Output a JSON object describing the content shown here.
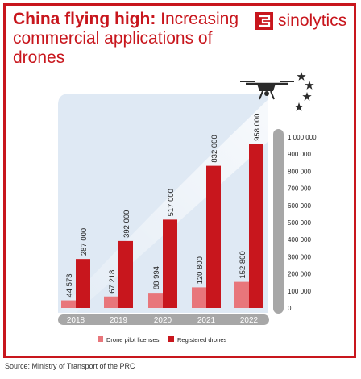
{
  "header": {
    "title_bold": "China flying high:",
    "title_rest": " Increasing commercial applications of drones",
    "brand": "sinolytics"
  },
  "source": "Source: Ministry of Transport of the PRC",
  "colors": {
    "accent": "#c8161d",
    "licenses": "#e8767b",
    "registered": "#c8161d",
    "axis_bar": "#a7a7a7",
    "background_panel": "#dfe9f4"
  },
  "icons": [
    "sinolytics-logo-icon",
    "drone-icon",
    "star-icon"
  ],
  "chart_data": {
    "type": "bar",
    "categories": [
      "2018",
      "2019",
      "2020",
      "2021",
      "2022"
    ],
    "series": [
      {
        "name": "Drone pilot licenses",
        "values": [
          44573,
          67218,
          88994,
          120800,
          152800
        ],
        "labels": [
          "44 573",
          "67 218",
          "88 994",
          "120 800",
          "152 800"
        ]
      },
      {
        "name": "Registered drones",
        "values": [
          287000,
          392000,
          517000,
          832000,
          958000
        ],
        "labels": [
          "287 000",
          "392 000",
          "517 000",
          "832 000",
          "958 000"
        ]
      }
    ],
    "yticks": [
      0,
      100000,
      200000,
      300000,
      400000,
      500000,
      600000,
      700000,
      800000,
      900000,
      1000000
    ],
    "ytick_labels": [
      "0",
      "100 000",
      "200 000",
      "300 000",
      "400 000",
      "500 000",
      "600 000",
      "700 000",
      "800 000",
      "900 000",
      "1 000 000"
    ],
    "ylim": [
      0,
      1000000
    ],
    "legend_position": "bottom",
    "grid": false
  }
}
